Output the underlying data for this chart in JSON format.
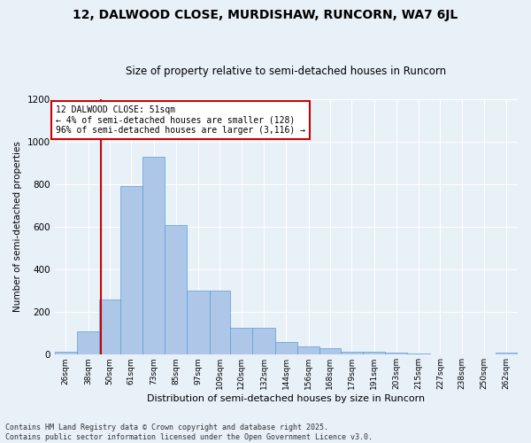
{
  "title": "12, DALWOOD CLOSE, MURDISHAW, RUNCORN, WA7 6JL",
  "subtitle": "Size of property relative to semi-detached houses in Runcorn",
  "xlabel": "Distribution of semi-detached houses by size in Runcorn",
  "ylabel": "Number of semi-detached properties",
  "bin_labels": [
    "26sqm",
    "38sqm",
    "50sqm",
    "61sqm",
    "73sqm",
    "85sqm",
    "97sqm",
    "109sqm",
    "120sqm",
    "132sqm",
    "144sqm",
    "156sqm",
    "168sqm",
    "179sqm",
    "191sqm",
    "203sqm",
    "215sqm",
    "227sqm",
    "238sqm",
    "250sqm",
    "262sqm"
  ],
  "bin_edges": [
    26,
    38,
    50,
    61,
    73,
    85,
    97,
    109,
    120,
    132,
    144,
    156,
    168,
    179,
    191,
    203,
    215,
    227,
    238,
    250,
    262
  ],
  "bar_heights": [
    15,
    110,
    260,
    790,
    930,
    610,
    300,
    300,
    125,
    125,
    60,
    40,
    30,
    15,
    12,
    8,
    4,
    2,
    1,
    1,
    8
  ],
  "bar_color": "#aec6e8",
  "bar_edge_color": "#5a9fd4",
  "property_size": 51,
  "property_line_color": "#cc0000",
  "annotation_line1": "12 DALWOOD CLOSE: 51sqm",
  "annotation_line2": "← 4% of semi-detached houses are smaller (128)",
  "annotation_line3": "96% of semi-detached houses are larger (3,116) →",
  "annotation_box_color": "#ffffff",
  "annotation_box_edge": "#cc0000",
  "ylim": [
    0,
    1200
  ],
  "yticks": [
    0,
    200,
    400,
    600,
    800,
    1000,
    1200
  ],
  "background_color": "#e8f0f8",
  "footer_line1": "Contains HM Land Registry data © Crown copyright and database right 2025.",
  "footer_line2": "Contains public sector information licensed under the Open Government Licence v3.0.",
  "title_fontsize": 10,
  "subtitle_fontsize": 8.5,
  "annotation_fontsize": 7,
  "footer_fontsize": 6,
  "ylabel_fontsize": 7.5,
  "xlabel_fontsize": 8
}
